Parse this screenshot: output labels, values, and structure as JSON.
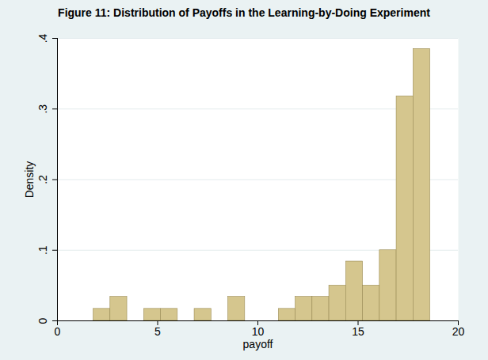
{
  "chart_data": {
    "type": "histogram",
    "title": "Figure 11: Distribution of Payoffs in the Learning-by-Doing Experiment",
    "x_label": "payoff",
    "y_label": "Density",
    "bins": [
      1.8,
      2.64,
      3.48,
      4.32,
      5.16,
      6.0,
      6.84,
      7.68,
      8.52,
      9.36,
      10.2,
      11.04,
      11.88,
      12.72,
      13.56,
      14.4,
      15.24,
      16.08,
      16.92,
      17.76,
      18.6
    ],
    "values": [
      0.017,
      0.034,
      0,
      0.017,
      0.017,
      0,
      0.017,
      0,
      0.034,
      0,
      0,
      0.017,
      0.034,
      0.034,
      0.05,
      0.084,
      0.05,
      0.1,
      0.318,
      0.385
    ],
    "color": "#d5c68e",
    "xlim": [
      0,
      20
    ],
    "xticks": [
      0,
      5,
      10,
      15,
      20
    ],
    "ylim": [
      0,
      0.4
    ],
    "yticks": [
      0,
      {
        "value": 0.1,
        "label": ".1"
      },
      {
        "value": 0.2,
        "label": ".2"
      },
      {
        "value": 0.3,
        "label": ".3"
      },
      {
        "value": 0.4,
        "label": ".4"
      }
    ],
    "grid": true
  }
}
